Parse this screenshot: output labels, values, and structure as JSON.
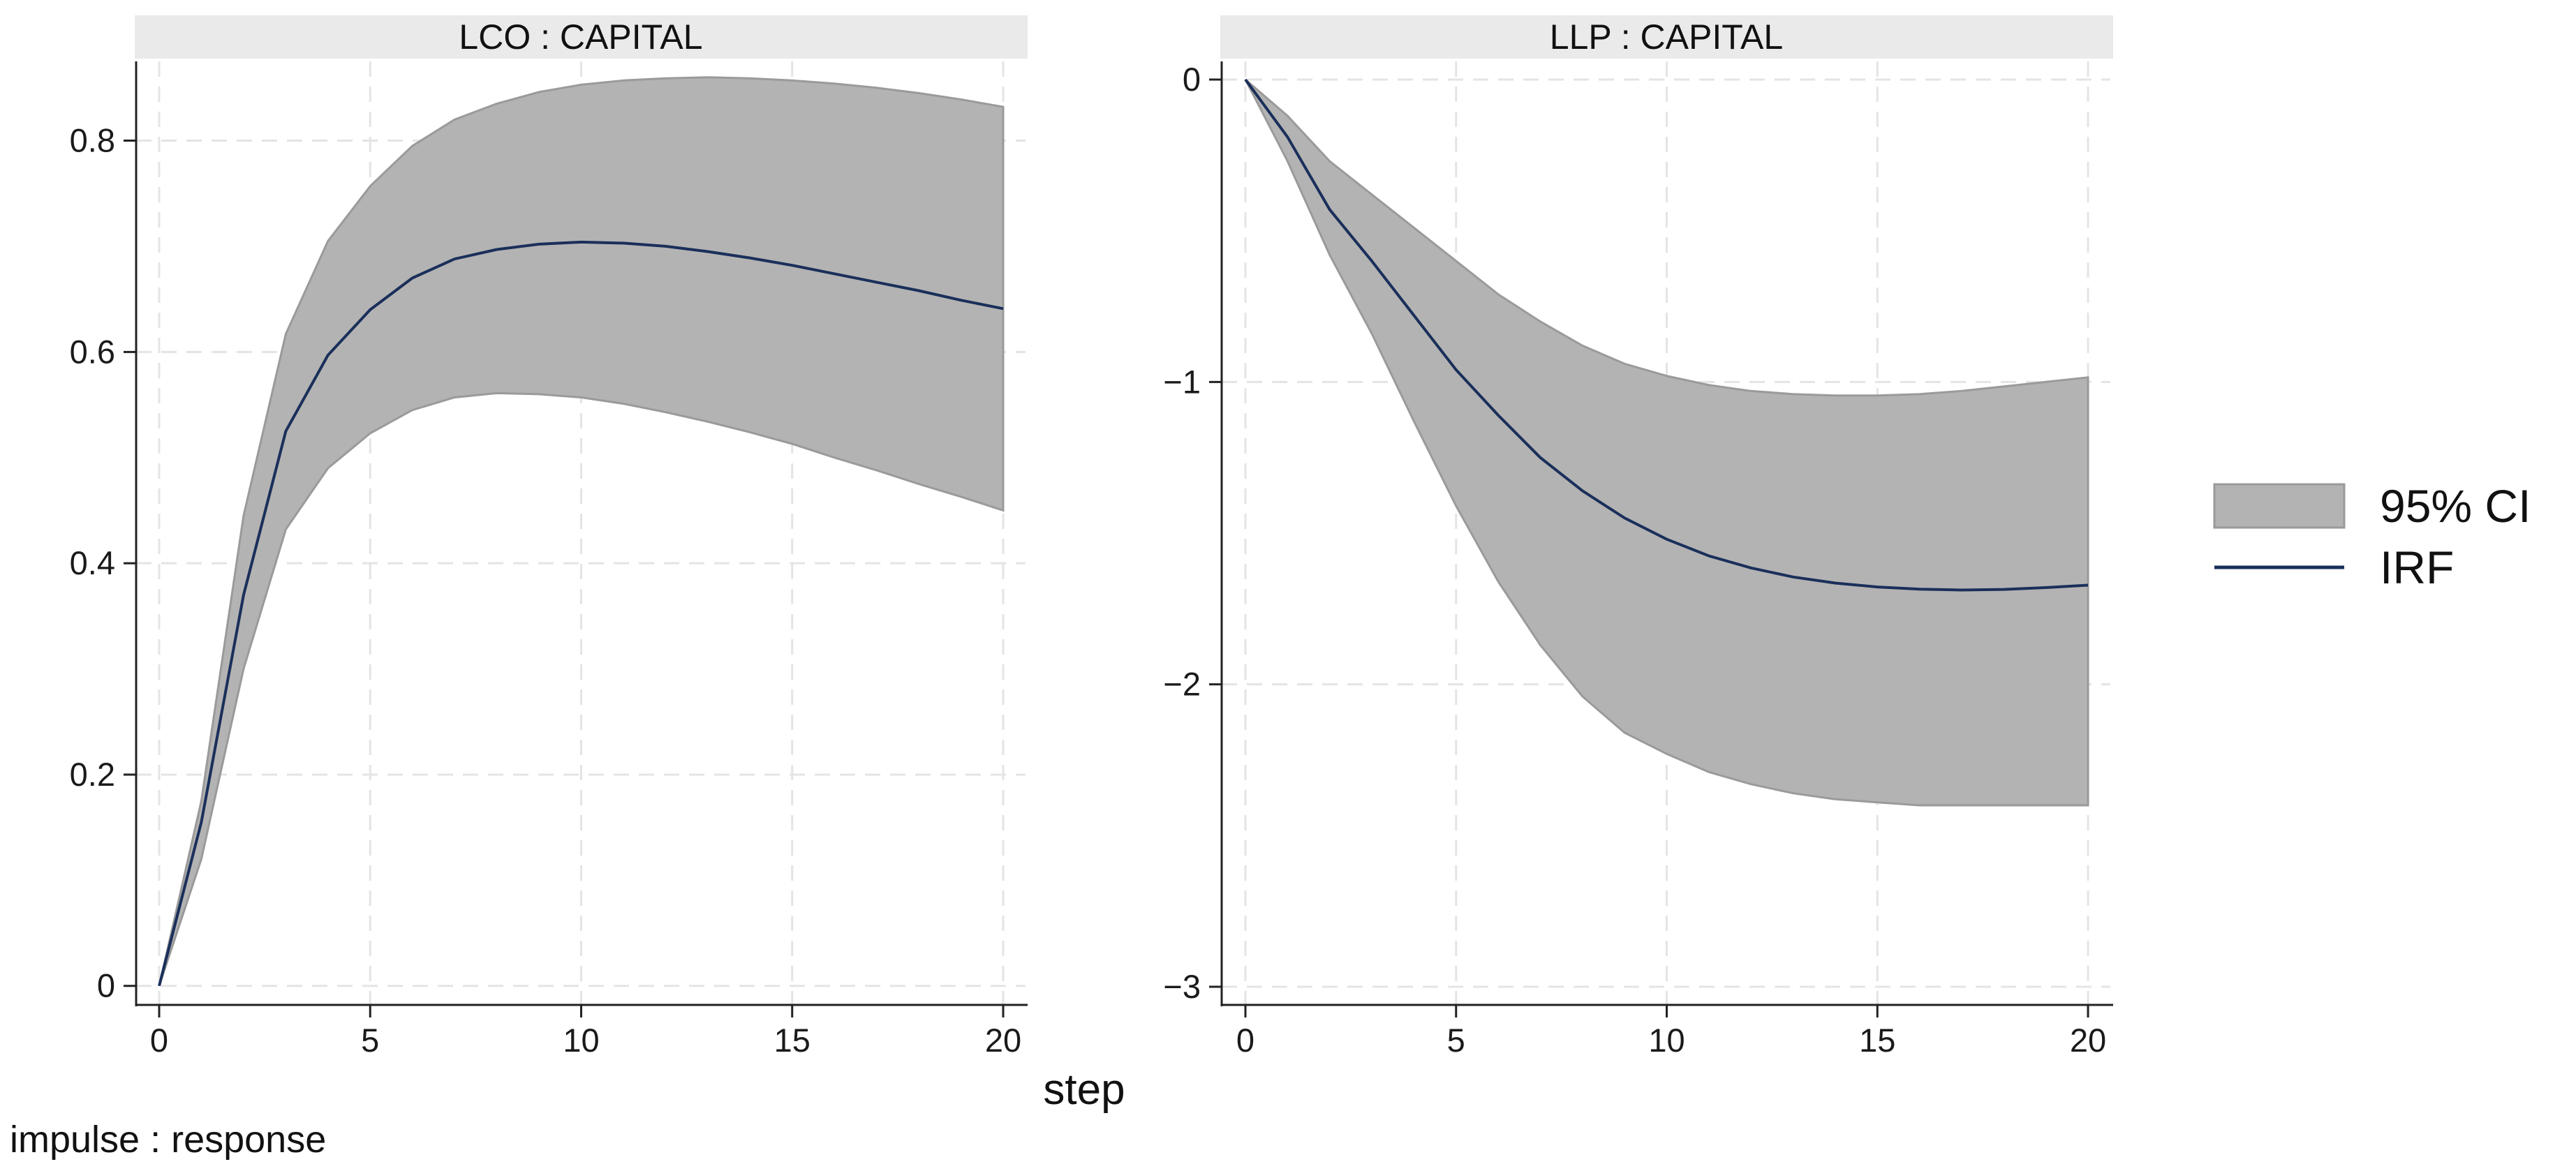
{
  "chart_data": {
    "type": "line",
    "xlabel": "step",
    "note": "impulse : response",
    "legend": {
      "placement": "right",
      "entries": [
        {
          "label": "95% CI",
          "kind": "band",
          "color": "#b3b3b3",
          "edge": "#9a9a9a"
        },
        {
          "label": "IRF",
          "kind": "line",
          "color": "#1a2f5a"
        }
      ]
    },
    "panels": [
      {
        "title": "LCO : CAPITAL",
        "xlim": [
          0,
          20
        ],
        "ylim": [
          -0.018,
          0.875
        ],
        "xticks": [
          0,
          5,
          10,
          15,
          20
        ],
        "xtick_labels": [
          "0",
          "5",
          "10",
          "15",
          "20"
        ],
        "yticks": [
          0,
          0.2,
          0.4,
          0.6,
          0.8
        ],
        "ytick_labels": [
          "0",
          "0.2",
          "0.4",
          "0.6",
          "0.8"
        ],
        "x": [
          0,
          1,
          2,
          3,
          4,
          5,
          6,
          7,
          8,
          9,
          10,
          11,
          12,
          13,
          14,
          15,
          16,
          17,
          18,
          19,
          20
        ],
        "irf": [
          0,
          0.155,
          0.37,
          0.525,
          0.597,
          0.64,
          0.67,
          0.688,
          0.697,
          0.702,
          0.704,
          0.703,
          0.7,
          0.695,
          0.689,
          0.682,
          0.674,
          0.666,
          0.658,
          0.649,
          0.641
        ],
        "upper": [
          0,
          0.175,
          0.445,
          0.617,
          0.705,
          0.757,
          0.795,
          0.82,
          0.835,
          0.846,
          0.853,
          0.857,
          0.859,
          0.86,
          0.859,
          0.857,
          0.854,
          0.85,
          0.845,
          0.839,
          0.832
        ],
        "lower": [
          0,
          0.12,
          0.3,
          0.432,
          0.49,
          0.523,
          0.545,
          0.557,
          0.561,
          0.56,
          0.557,
          0.551,
          0.543,
          0.534,
          0.524,
          0.513,
          0.5,
          0.488,
          0.475,
          0.463,
          0.45
        ]
      },
      {
        "title": "LLP : CAPITAL",
        "xlim": [
          0,
          20
        ],
        "ylim": [
          -3.06,
          0.06
        ],
        "xticks": [
          0,
          5,
          10,
          15,
          20
        ],
        "xtick_labels": [
          "0",
          "5",
          "10",
          "15",
          "20"
        ],
        "yticks": [
          -3,
          -2,
          -1,
          0
        ],
        "ytick_labels": [
          "−3",
          "−2",
          "−1",
          "0"
        ],
        "x": [
          0,
          1,
          2,
          3,
          4,
          5,
          6,
          7,
          8,
          9,
          10,
          11,
          12,
          13,
          14,
          15,
          16,
          17,
          18,
          19,
          20
        ],
        "irf": [
          0,
          -0.19,
          -0.43,
          -0.6,
          -0.78,
          -0.96,
          -1.11,
          -1.25,
          -1.36,
          -1.45,
          -1.52,
          -1.575,
          -1.615,
          -1.645,
          -1.665,
          -1.678,
          -1.685,
          -1.688,
          -1.686,
          -1.68,
          -1.672
        ],
        "upper": [
          0,
          -0.12,
          -0.27,
          -0.38,
          -0.49,
          -0.6,
          -0.71,
          -0.8,
          -0.88,
          -0.94,
          -0.98,
          -1.01,
          -1.03,
          -1.04,
          -1.045,
          -1.045,
          -1.04,
          -1.03,
          -1.015,
          -1,
          -0.985
        ],
        "lower": [
          0,
          -0.27,
          -0.58,
          -0.84,
          -1.13,
          -1.41,
          -1.66,
          -1.87,
          -2.04,
          -2.16,
          -2.23,
          -2.29,
          -2.33,
          -2.36,
          -2.38,
          -2.39,
          -2.4,
          -2.4,
          -2.4,
          -2.4,
          -2.4
        ]
      }
    ]
  }
}
